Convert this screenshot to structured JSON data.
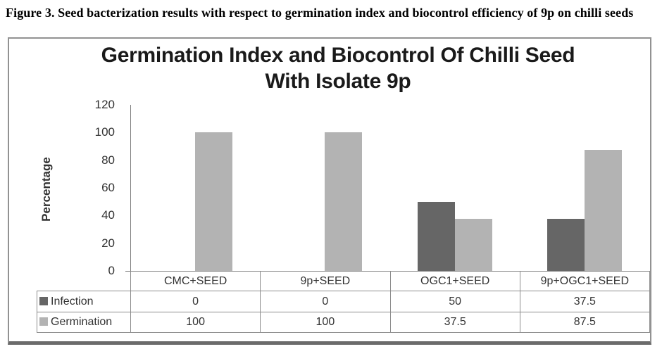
{
  "figure": {
    "caption": "Figure 3. Seed bacterization results with respect to germination index and biocontrol efficiency of 9p on chilli seeds"
  },
  "chart_data": {
    "type": "bar",
    "title": "Germination Index and Biocontrol Of Chilli Seed With Isolate 9p",
    "xlabel": "",
    "ylabel": "Percentage",
    "categories": [
      "CMC+SEED",
      "9p+SEED",
      "OGC1+SEED",
      "9p+OGC1+SEED"
    ],
    "series": [
      {
        "name": "Infection",
        "color": "#666666",
        "values": [
          0,
          0,
          50,
          37.5
        ]
      },
      {
        "name": "Germination",
        "color": "#b3b3b3",
        "values": [
          100,
          100,
          37.5,
          87.5
        ]
      }
    ],
    "ylim": [
      0,
      120
    ],
    "ytick_step": 20,
    "grid": false,
    "legend_position": "data-table-left",
    "data_table": true,
    "colors": {
      "axis": "#7f7f7f",
      "table_border": "#8c8c8c",
      "title_text": "#1a1a1a",
      "tick_text": "#333333"
    }
  }
}
